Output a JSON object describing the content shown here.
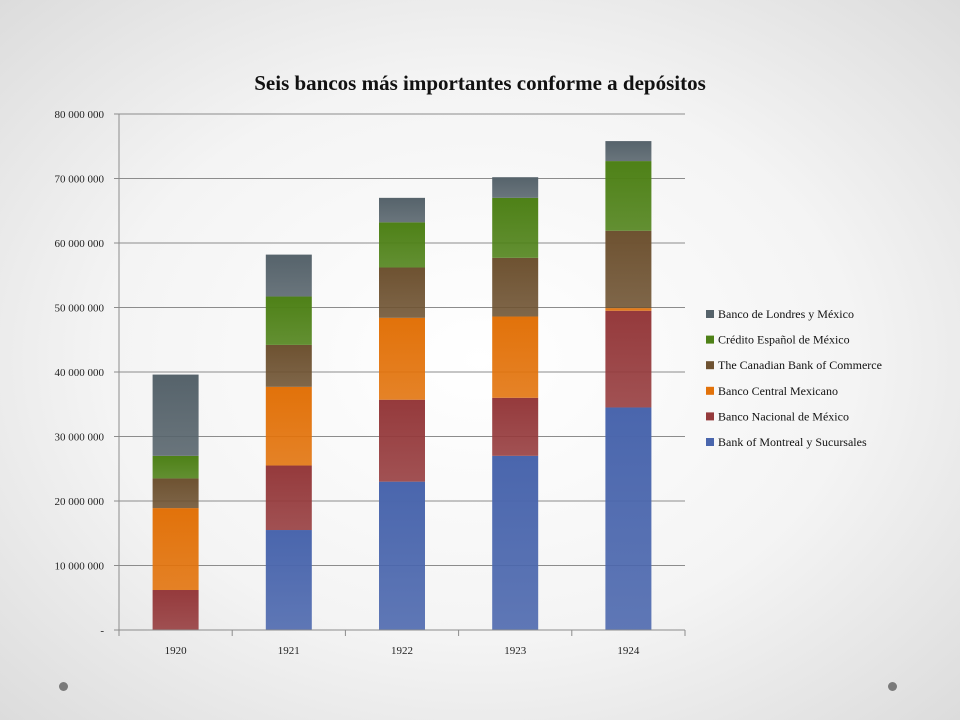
{
  "slide": {
    "decor": {
      "dot_color": "#7a7a7a"
    }
  },
  "chart_data": {
    "type": "bar",
    "stacked": true,
    "title": "Seis bancos más importantes conforme a depósitos",
    "xlabel": "",
    "ylabel": "",
    "ylim": [
      0,
      80000000
    ],
    "yticks": [
      0,
      10000000,
      20000000,
      30000000,
      40000000,
      50000000,
      60000000,
      70000000,
      80000000
    ],
    "ytick_labels": [
      "-",
      "10 000 000",
      "20 000 000",
      "30 000 000",
      "40 000 000",
      "50 000 000",
      "60 000 000",
      "70 000 000",
      "80 000 000"
    ],
    "categories": [
      "1920",
      "1921",
      "1922",
      "1923",
      "1924"
    ],
    "grid": true,
    "legend_position": "right",
    "series": [
      {
        "name": "Bank of Montreal y Sucursales",
        "color": "#4a66ad",
        "values": [
          0,
          15500000,
          23000000,
          27000000,
          34500000
        ]
      },
      {
        "name": "Banco Nacional de México",
        "color": "#953a3c",
        "values": [
          6200000,
          10000000,
          12700000,
          9000000,
          15000000
        ]
      },
      {
        "name": "Banco Central Mexicano",
        "color": "#e2720a",
        "values": [
          12700000,
          12200000,
          12700000,
          12600000,
          400000
        ]
      },
      {
        "name": "The Canadian Bank of Commerce",
        "color": "#6e5231",
        "values": [
          4600000,
          6500000,
          7800000,
          9100000,
          12000000
        ]
      },
      {
        "name": "Crédito Español de México",
        "color": "#4e8117",
        "values": [
          3500000,
          7500000,
          7000000,
          9300000,
          10800000
        ]
      },
      {
        "name": "Banco de Londres y México",
        "color": "#56636b",
        "values": [
          12600000,
          6500000,
          3800000,
          3200000,
          3100000
        ]
      }
    ]
  }
}
